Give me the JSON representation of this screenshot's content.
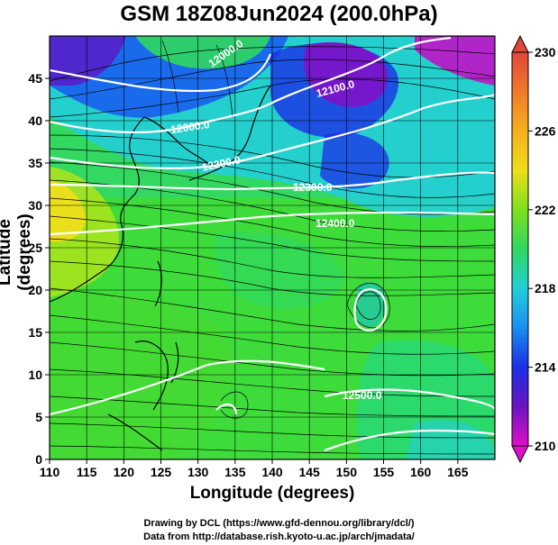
{
  "title": "GSM 18Z08Jun2024 (200.0hPa)",
  "axes": {
    "xlabel": "Longitude (degrees)",
    "ylabel": "Latitude  (degrees)",
    "x_ticks": [
      "110",
      "115",
      "120",
      "125",
      "130",
      "135",
      "140",
      "145",
      "150",
      "155",
      "160",
      "165"
    ],
    "y_ticks": [
      "0",
      "5",
      "10",
      "15",
      "20",
      "25",
      "30",
      "35",
      "40",
      "45"
    ]
  },
  "colorbar": {
    "ticks": [
      "230",
      "226",
      "222",
      "218",
      "214",
      "210"
    ],
    "colors_top_to_bottom": [
      "#e0463c",
      "#f07a2a",
      "#f5b01e",
      "#eede1a",
      "#a6e41e",
      "#3edc3a",
      "#28d88c",
      "#22cfe0",
      "#1a8ef0",
      "#1b2ee6",
      "#3a1ab8",
      "#9a14c8",
      "#e010c8"
    ]
  },
  "contour_labels": [
    "12000.0",
    "12100.0",
    "12000.0",
    "12200.0",
    "12300.0",
    "12400.0",
    "12500.0"
  ],
  "credits": {
    "line1": "Drawing by DCL (https://www.gfd-dennou.org/library/dcl/)",
    "line2": "Data from http://database.rish.kyoto-u.ac.jp/arch/jmadata/"
  }
}
